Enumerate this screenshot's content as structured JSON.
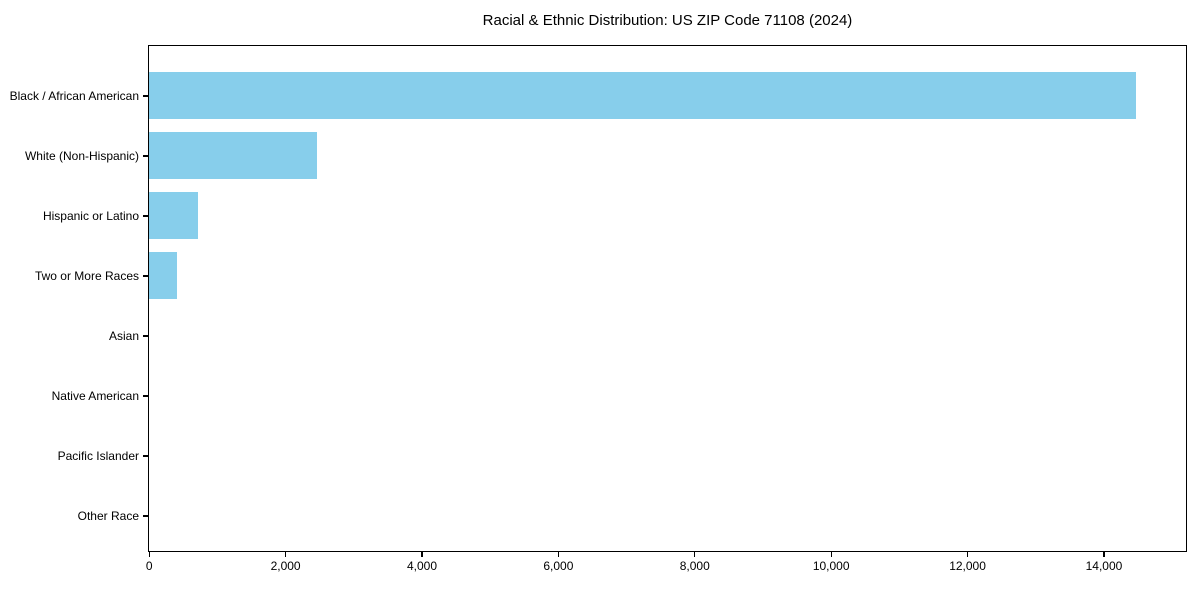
{
  "figure": {
    "title": "Racial & Ethnic Distribution: US ZIP Code 71108 (2024)"
  },
  "chart_data": {
    "type": "bar",
    "orientation": "horizontal",
    "title": "Racial & Ethnic Distribution: US ZIP Code 71108 (2024)",
    "categories": [
      "Black / African American",
      "White (Non-Hispanic)",
      "Hispanic or Latino",
      "Two or More Races",
      "Asian",
      "Native American",
      "Pacific Islander",
      "Other Race"
    ],
    "values": [
      14480,
      2460,
      715,
      410,
      0,
      0,
      0,
      0
    ],
    "xlabel": "",
    "ylabel": "",
    "xlim": [
      0,
      15200
    ],
    "xticks": [
      0,
      2000,
      4000,
      6000,
      8000,
      10000,
      12000,
      14000
    ],
    "xtick_labels": [
      "0",
      "2,000",
      "4,000",
      "6,000",
      "8,000",
      "10,000",
      "12,000",
      "14,000"
    ],
    "bar_color": "#87CEEB",
    "axis_color": "#000000",
    "text_color": "#000000",
    "background": "#FFFFFF",
    "grid": false,
    "legend": false
  }
}
